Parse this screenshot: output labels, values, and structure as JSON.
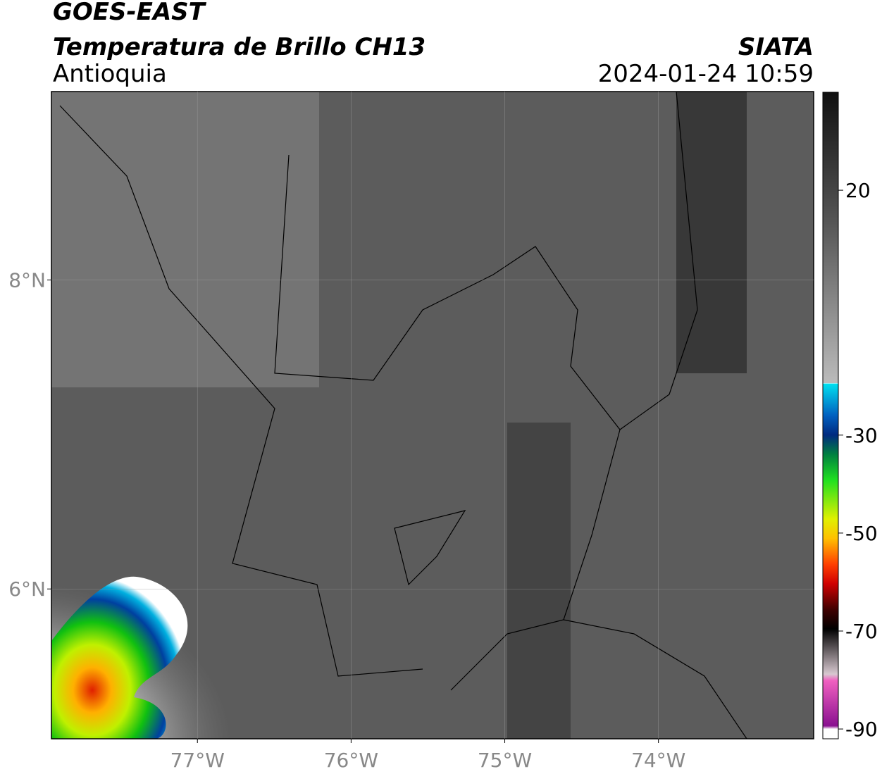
{
  "header": {
    "title": "GOES-EAST",
    "subtitle": "Temperatura de Brillo CH13",
    "region": "Antioquia",
    "source": "SIATA",
    "datetime": "2024-01-24 10:59"
  },
  "map": {
    "xlim": [
      -77.95,
      -72.99
    ],
    "ylim": [
      5.03,
      9.22
    ],
    "xticks": [
      {
        "value": -77,
        "label": "77°W"
      },
      {
        "value": -76,
        "label": "76°W"
      },
      {
        "value": -75,
        "label": "75°W"
      },
      {
        "value": -74,
        "label": "74°W"
      }
    ],
    "yticks": [
      {
        "value": 8,
        "label": "8°N"
      },
      {
        "value": 6,
        "label": "6°N"
      }
    ],
    "grid": true
  },
  "colorbar": {
    "lim": [
      -92,
      40
    ],
    "ticks": [
      20,
      -30,
      -50,
      -70,
      -90
    ]
  }
}
